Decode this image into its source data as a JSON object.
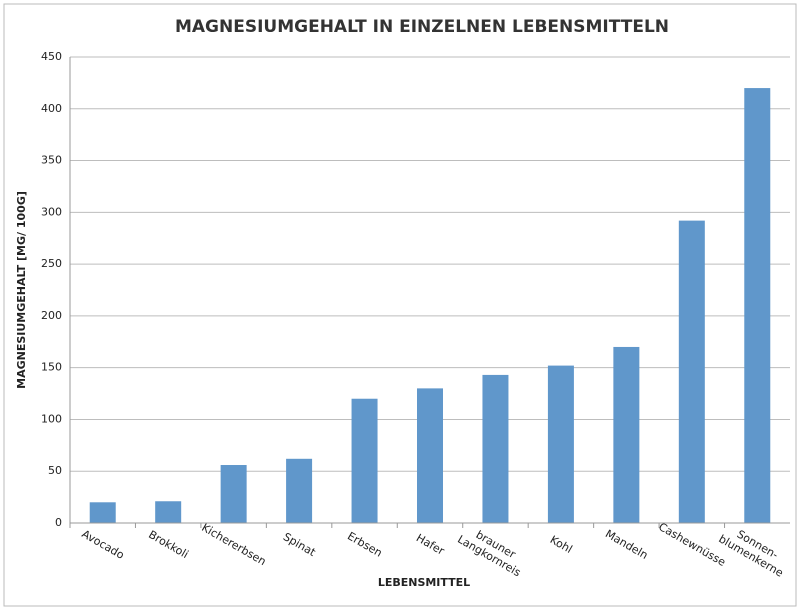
{
  "chart_data": {
    "type": "bar",
    "title": "MAGNESIUMGEHALT IN EINZELNEN LEBENSMITTELN",
    "x_label": "LEBENSMITTEL",
    "y_label": "MAGNESIUMGEHALT [MG/ 100G]",
    "categories": [
      "Avocado",
      "Brokkoli",
      "Kichererbsen",
      "Spinat",
      "Erbsen",
      "Hafer",
      "brauner\nLangkornreis",
      "Kohl",
      "Mandeln",
      "Cashewnüsse",
      "Sonnen-\nblumenkerne"
    ],
    "values": [
      20,
      21,
      56,
      62,
      120,
      130,
      143,
      152,
      170,
      292,
      420
    ],
    "color": "#6097cb",
    "ylim": [
      0,
      450
    ],
    "yticks": [
      0,
      50,
      100,
      150,
      200,
      250,
      300,
      350,
      400,
      450
    ],
    "grid": true
  }
}
